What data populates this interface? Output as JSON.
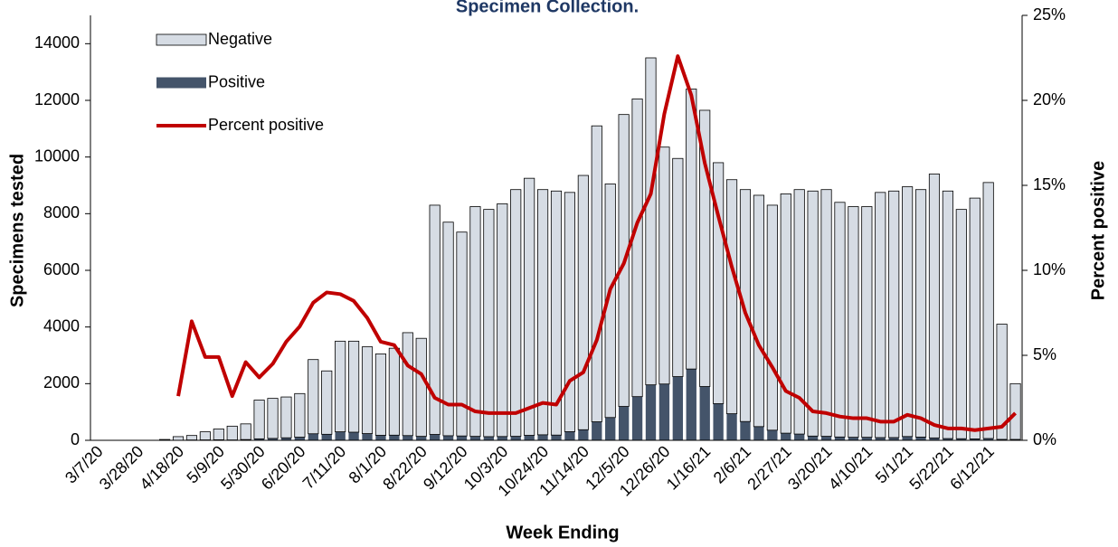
{
  "chart_data": {
    "type": "bar",
    "title": "Specimen Collection.",
    "x_label": "Week Ending",
    "y_label": "Specimens tested",
    "y2_label": "Percent positive",
    "categories": [
      "3/7/20",
      null,
      null,
      "3/28/20",
      null,
      null,
      "4/18/20",
      null,
      null,
      "5/9/20",
      null,
      null,
      "5/30/20",
      null,
      null,
      "6/20/20",
      null,
      null,
      "7/11/20",
      null,
      null,
      "8/1/20",
      null,
      null,
      "8/22/20",
      null,
      null,
      "9/12/20",
      null,
      null,
      "10/3/20",
      null,
      null,
      "10/24/20",
      null,
      null,
      "11/14/20",
      null,
      null,
      "12/5/20",
      null,
      null,
      "12/26/20",
      null,
      null,
      "1/16/21",
      null,
      null,
      "2/6/21",
      null,
      null,
      "2/27/21",
      null,
      null,
      "3/20/21",
      null,
      null,
      "4/10/21",
      null,
      null,
      "5/1/21",
      null,
      null,
      "5/22/21",
      null,
      null,
      "6/12/21",
      null,
      null
    ],
    "series": [
      {
        "name": "Negative",
        "color": "#d6dce4",
        "values": [
          0,
          0,
          0,
          0,
          0,
          30,
          127,
          158,
          285,
          380,
          487,
          553,
          1367,
          1413,
          1441,
          1539,
          2619,
          2237,
          3199,
          3213,
          3062,
          2873,
          3068,
          3633,
          3460,
          8092,
          7538,
          7196,
          8110,
          8020,
          8216,
          8708,
          9074,
          8655,
          8615,
          8444,
          8976,
          10445,
          8245,
          10304,
          10508,
          11542,
          8363,
          7701,
          9883,
          9751,
          8506,
          8262,
          8186,
          8166,
          7943,
          8448,
          8629,
          8650,
          8708,
          8282,
          8143,
          8143,
          8654,
          8703,
          8816,
          8735,
          9315,
          8738,
          8093,
          8499,
          9036,
          4067,
          1968
        ]
      },
      {
        "name": "Positive",
        "color": "#44546a",
        "values": [
          0,
          0,
          0,
          0,
          0,
          0,
          3,
          12,
          15,
          20,
          13,
          27,
          53,
          67,
          89,
          111,
          231,
          213,
          301,
          287,
          238,
          177,
          182,
          167,
          140,
          208,
          162,
          154,
          140,
          130,
          134,
          142,
          176,
          195,
          185,
          306,
          374,
          655,
          805,
          1196,
          1542,
          1958,
          1987,
          2249,
          2517,
          1899,
          1294,
          938,
          664,
          484,
          357,
          252,
          221,
          150,
          142,
          118,
          107,
          107,
          96,
          97,
          134,
          115,
          85,
          62,
          57,
          51,
          64,
          33,
          32
        ]
      },
      {
        "name": "Percent positive",
        "type": "line",
        "axis": "y2",
        "color": "#c00000",
        "values": [
          null,
          null,
          null,
          null,
          null,
          null,
          2.6,
          7,
          4.9,
          4.9,
          2.6,
          4.6,
          3.7,
          4.5,
          5.8,
          6.7,
          8.1,
          8.7,
          8.6,
          8.2,
          7.2,
          5.8,
          5.6,
          4.4,
          3.9,
          2.5,
          2.1,
          2.1,
          1.7,
          1.6,
          1.6,
          1.6,
          1.9,
          2.2,
          2.1,
          3.5,
          4,
          5.9,
          8.9,
          10.4,
          12.8,
          14.5,
          19.2,
          22.6,
          20.3,
          16.3,
          13.2,
          10.2,
          7.5,
          5.6,
          4.3,
          2.9,
          2.5,
          1.7,
          1.6,
          1.4,
          1.3,
          1.3,
          1.1,
          1.1,
          1.5,
          1.3,
          0.9,
          0.7,
          0.7,
          0.6,
          0.7,
          0.8,
          1.6
        ]
      }
    ],
    "ylim": [
      0,
      15000
    ],
    "yticks": [
      0,
      2000,
      4000,
      6000,
      8000,
      10000,
      12000,
      14000
    ],
    "y2lim": [
      0,
      25
    ],
    "y2ticks": [
      {
        "value": 0,
        "label": "0%"
      },
      {
        "value": 5,
        "label": "5%"
      },
      {
        "value": 10,
        "label": "10%"
      },
      {
        "value": 15,
        "label": "15%"
      },
      {
        "value": 20,
        "label": "20%"
      },
      {
        "value": 25,
        "label": "25%"
      }
    ],
    "grid": false,
    "stacked": true,
    "legend": "top-left"
  }
}
